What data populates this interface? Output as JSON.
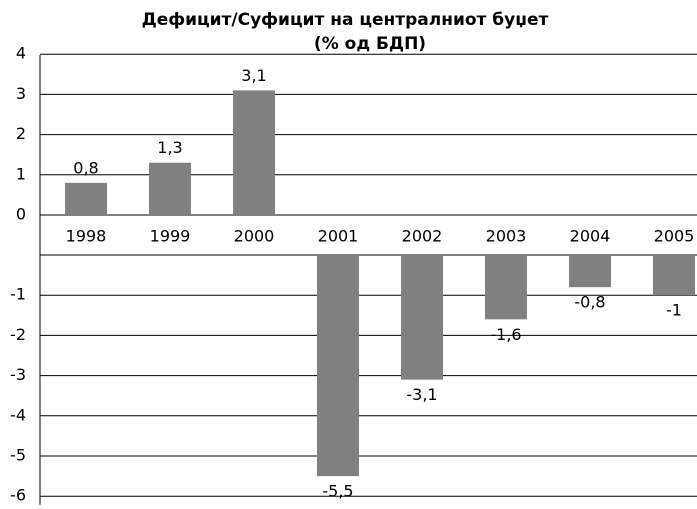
{
  "chart_data": {
    "type": "bar",
    "title": [
      "Дефицит/Суфицит на централниот буџет",
      "(% од БДП)"
    ],
    "categories": [
      "1998",
      "1999",
      "2000",
      "2001",
      "2002",
      "2003",
      "2004",
      "2005"
    ],
    "values": [
      0.8,
      1.3,
      3.1,
      -5.5,
      -3.1,
      -1.6,
      -0.8,
      -1
    ],
    "value_labels": [
      "0,8",
      "1,3",
      "3,1",
      "-5,5",
      "-3,1",
      "-1,6",
      "-0,8",
      "-1"
    ],
    "color": "#808080",
    "ylim": [
      -6,
      4
    ],
    "yticks": [
      -6,
      -5,
      -4,
      -3,
      -2,
      -1,
      0,
      1,
      2,
      3,
      4
    ],
    "grid": true
  }
}
